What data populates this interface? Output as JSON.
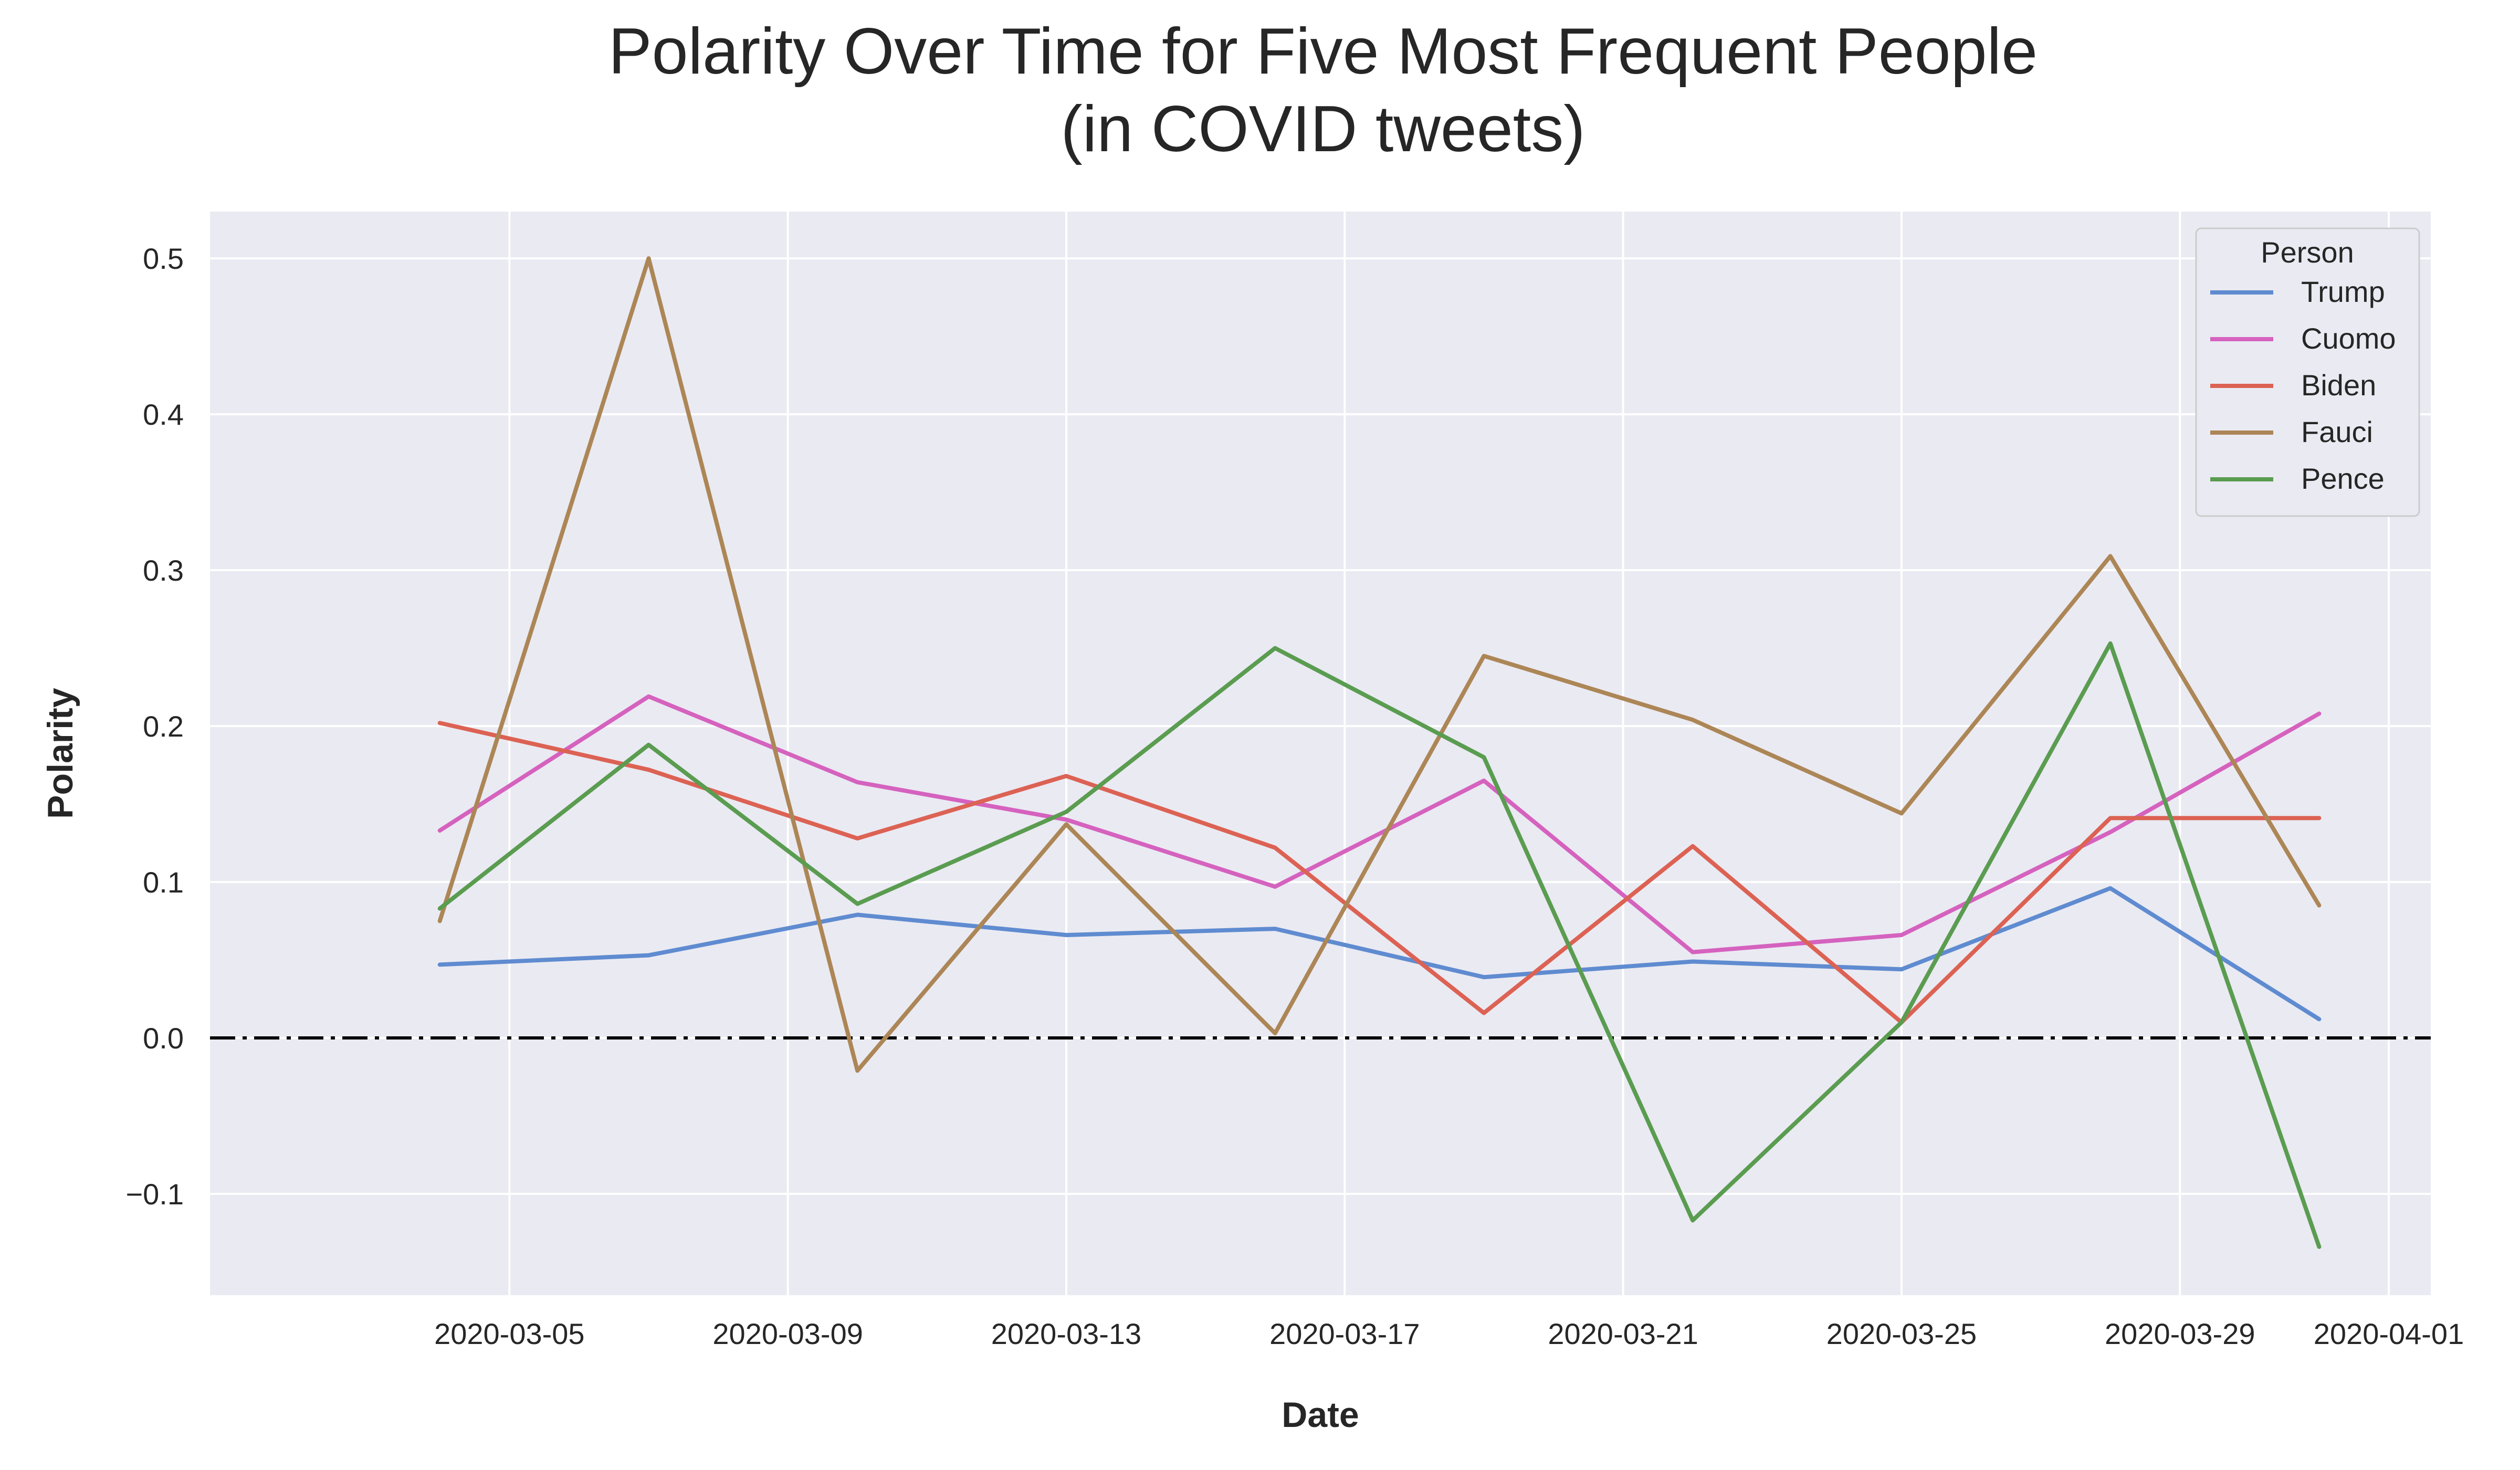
{
  "chart_data": {
    "type": "line",
    "title": "Polarity Over Time for Five Most Frequent People",
    "subtitle": "(in COVID tweets)",
    "xlabel": "Date",
    "ylabel": "Polarity",
    "x": [
      "2020-03-04",
      "2020-03-07",
      "2020-03-10",
      "2020-03-13",
      "2020-03-16",
      "2020-03-19",
      "2020-03-22",
      "2020-03-25",
      "2020-03-28",
      "2020-03-31"
    ],
    "xlim": [
      "2020-03-01",
      "2020-04-01"
    ],
    "xticks": [
      "2020-03-05",
      "2020-03-09",
      "2020-03-13",
      "2020-03-17",
      "2020-03-21",
      "2020-03-25",
      "2020-03-29",
      "2020-04-01"
    ],
    "ylim": [
      -0.165,
      0.53
    ],
    "yticks": [
      -0.1,
      0.0,
      0.1,
      0.2,
      0.3,
      0.4,
      0.5
    ],
    "ytick_labels": [
      "−0.1",
      "0.0",
      "0.1",
      "0.2",
      "0.3",
      "0.4",
      "0.5"
    ],
    "grid": true,
    "reference_line": 0.0,
    "legend_title": "Person",
    "legend_position": "top-right",
    "series": [
      {
        "name": "Trump",
        "color": "#5f8bd0",
        "values": [
          0.047,
          0.053,
          0.079,
          0.066,
          0.07,
          0.039,
          0.049,
          0.044,
          0.096,
          0.012
        ]
      },
      {
        "name": "Cuomo",
        "color": "#d562be",
        "values": [
          0.133,
          0.219,
          0.164,
          0.14,
          0.097,
          0.165,
          0.055,
          0.066,
          0.132,
          0.208
        ]
      },
      {
        "name": "Biden",
        "color": "#dc6254",
        "values": [
          0.202,
          0.172,
          0.128,
          0.168,
          0.122,
          0.016,
          0.123,
          0.01,
          0.141,
          0.141
        ]
      },
      {
        "name": "Fauci",
        "color": "#ac8656",
        "values": [
          0.075,
          0.5,
          -0.021,
          0.137,
          0.003,
          0.245,
          0.204,
          0.144,
          0.309,
          0.085
        ]
      },
      {
        "name": "Pence",
        "color": "#5a9c50",
        "values": [
          0.083,
          0.188,
          0.086,
          0.145,
          0.25,
          0.18,
          -0.117,
          0.01,
          0.253,
          -0.134
        ]
      }
    ]
  }
}
